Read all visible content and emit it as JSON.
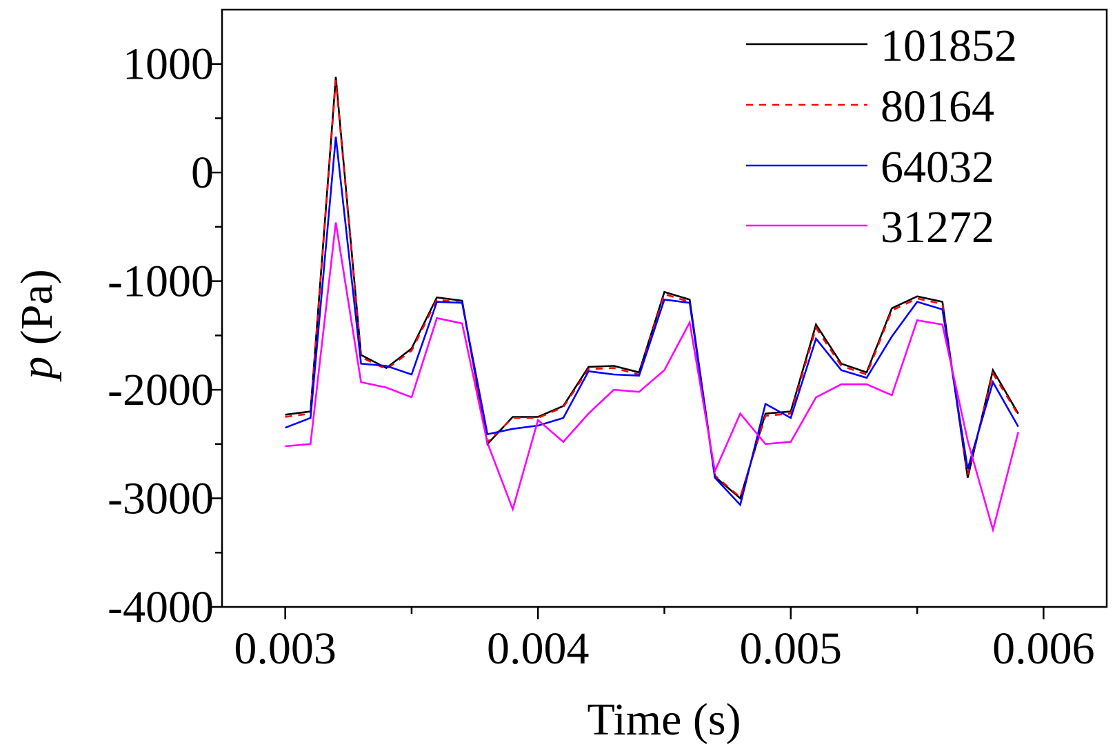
{
  "chart_data": {
    "type": "line",
    "title": "",
    "xlabel": "Time (s)",
    "ylabel_var": "p",
    "ylabel_unit": " (Pa)",
    "xlim": [
      0.00275,
      0.00625
    ],
    "ylim": [
      -4000,
      1500
    ],
    "xticks": [
      0.003,
      0.004,
      0.005,
      0.006
    ],
    "xtick_labels": [
      "0.003",
      "0.004",
      "0.005",
      "0.006"
    ],
    "yticks": [
      1000,
      0,
      -1000,
      -2000,
      -3000,
      -4000
    ],
    "ytick_labels": [
      "1000",
      "0",
      "-1000",
      "-2000",
      "-3000",
      "-4000"
    ],
    "grid": false,
    "legend_position": "top-right",
    "x": [
      0.003,
      0.0031,
      0.0032,
      0.0033,
      0.0034,
      0.0035,
      0.0036,
      0.0037,
      0.0038,
      0.0039,
      0.004,
      0.0041,
      0.0042,
      0.0043,
      0.0044,
      0.0045,
      0.0046,
      0.0047,
      0.0048,
      0.0049,
      0.005,
      0.0051,
      0.0052,
      0.0053,
      0.0054,
      0.0055,
      0.0056,
      0.0057,
      0.0058,
      0.0059
    ],
    "series": [
      {
        "name": "101852",
        "color": "#000000",
        "dash": "",
        "values": [
          -2230,
          -2200,
          880,
          -1680,
          -1800,
          -1620,
          -1150,
          -1180,
          -2500,
          -2250,
          -2250,
          -2150,
          -1790,
          -1780,
          -1840,
          -1100,
          -1170,
          -2800,
          -3000,
          -2220,
          -2200,
          -1400,
          -1760,
          -1840,
          -1250,
          -1140,
          -1190,
          -2810,
          -1820,
          -2220
        ]
      },
      {
        "name": "80164",
        "color": "#ff0000",
        "dash": "10,9",
        "values": [
          -2250,
          -2220,
          850,
          -1700,
          -1810,
          -1640,
          -1170,
          -1200,
          -2480,
          -2260,
          -2260,
          -2160,
          -1810,
          -1800,
          -1860,
          -1120,
          -1190,
          -2790,
          -2990,
          -2240,
          -2220,
          -1430,
          -1780,
          -1860,
          -1270,
          -1160,
          -1210,
          -2780,
          -1850,
          -2230
        ]
      },
      {
        "name": "64032",
        "color": "#0000ff",
        "dash": "",
        "values": [
          -2350,
          -2260,
          330,
          -1760,
          -1780,
          -1860,
          -1190,
          -1200,
          -2410,
          -2360,
          -2330,
          -2260,
          -1830,
          -1860,
          -1870,
          -1170,
          -1200,
          -2810,
          -3060,
          -2130,
          -2260,
          -1530,
          -1820,
          -1890,
          -1510,
          -1190,
          -1260,
          -2730,
          -1930,
          -2340
        ]
      },
      {
        "name": "31272",
        "color": "#ff00ff",
        "dash": "",
        "values": [
          -2520,
          -2500,
          -460,
          -1930,
          -1980,
          -2070,
          -1340,
          -1390,
          -2490,
          -3100,
          -2280,
          -2480,
          -2220,
          -2000,
          -2020,
          -1820,
          -1380,
          -2750,
          -2220,
          -2500,
          -2480,
          -2070,
          -1950,
          -1950,
          -2050,
          -1360,
          -1400,
          -2470,
          -3290,
          -2390
        ]
      }
    ]
  }
}
